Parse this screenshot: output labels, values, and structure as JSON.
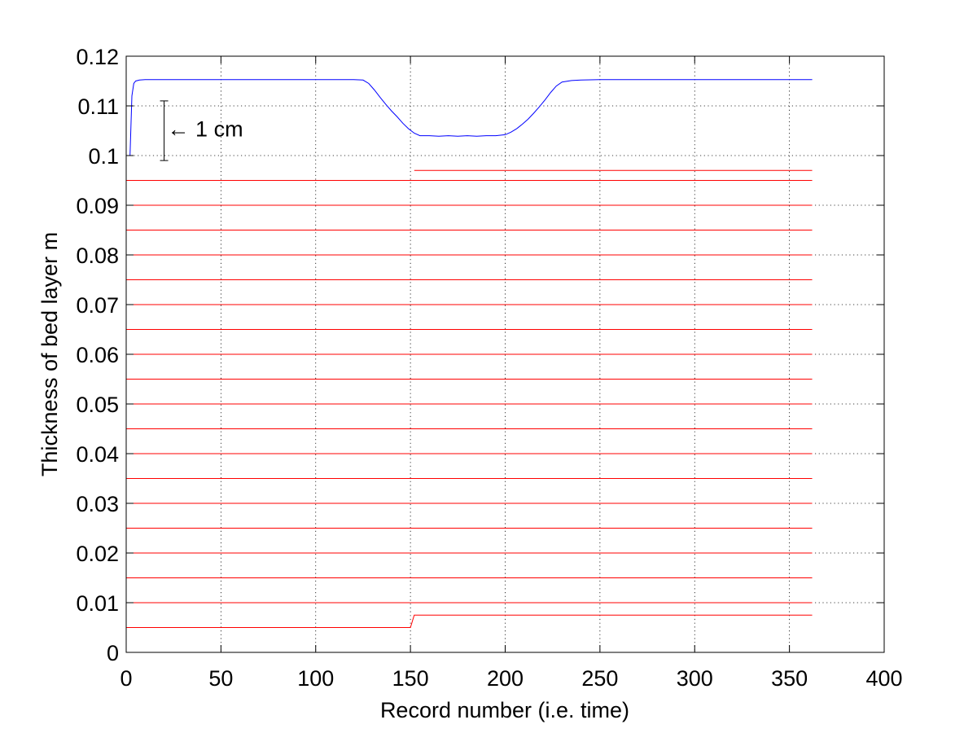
{
  "chart_data": {
    "type": "line",
    "xlabel": "Record number (i.e. time)",
    "ylabel": "Thickness of bed layer m",
    "xlim": [
      0,
      400
    ],
    "ylim": [
      0,
      0.12
    ],
    "xticks": [
      0,
      50,
      100,
      150,
      200,
      250,
      300,
      350,
      400
    ],
    "yticks": [
      0,
      0.01,
      0.02,
      0.03,
      0.04,
      0.05,
      0.06,
      0.07,
      0.08,
      0.09,
      0.1,
      0.11,
      0.12
    ],
    "xtick_labels": [
      "0",
      "50",
      "100",
      "150",
      "200",
      "250",
      "300",
      "350",
      "400"
    ],
    "ytick_labels": [
      "0",
      "0.01",
      "0.02",
      "0.03",
      "0.04",
      "0.05",
      "0.06",
      "0.07",
      "0.08",
      "0.09",
      "0.1",
      "0.11",
      "0.12"
    ],
    "grid": true,
    "annotation": {
      "text": "← 1 cm",
      "bar_x": 20,
      "bar_y": [
        0.099,
        0.111
      ],
      "arrow_y": 0.1055
    },
    "series": [
      {
        "color": "#0000ff",
        "x": [
          1,
          2,
          3,
          4,
          5,
          7,
          10,
          20,
          50,
          100,
          120,
          125,
          128,
          131,
          134,
          137,
          140,
          143,
          146,
          149,
          152,
          155,
          160,
          165,
          170,
          175,
          180,
          185,
          190,
          195,
          200,
          203,
          206,
          209,
          212,
          215,
          218,
          221,
          224,
          227,
          230,
          235,
          240,
          250,
          300,
          362
        ],
        "y": [
          0.1,
          0.1,
          0.112,
          0.1145,
          0.115,
          0.1152,
          0.1153,
          0.1153,
          0.1153,
          0.1153,
          0.1153,
          0.1152,
          0.1145,
          0.1132,
          0.1117,
          0.1103,
          0.109,
          0.1078,
          0.1065,
          0.1054,
          0.1045,
          0.104,
          0.104,
          0.1039,
          0.104,
          0.1039,
          0.104,
          0.1039,
          0.104,
          0.104,
          0.1042,
          0.1047,
          0.1054,
          0.1063,
          0.1073,
          0.1085,
          0.1098,
          0.1112,
          0.1127,
          0.114,
          0.1148,
          0.1151,
          0.1152,
          0.1153,
          0.1153,
          0.1153
        ]
      },
      {
        "color": "#ff0000",
        "step_from": 150,
        "step_to": 152,
        "x_start": 0,
        "x_end": 362,
        "before": [
          0.005,
          0.01,
          0.015,
          0.02,
          0.025,
          0.03,
          0.035,
          0.04,
          0.045,
          0.05,
          0.055,
          0.06,
          0.065,
          0.07,
          0.075,
          0.08,
          0.085,
          0.09,
          0.095
        ],
        "after": [
          0.0075,
          0.01,
          0.015,
          0.02,
          0.025,
          0.03,
          0.035,
          0.04,
          0.045,
          0.05,
          0.055,
          0.06,
          0.065,
          0.07,
          0.075,
          0.08,
          0.085,
          0.09,
          0.095,
          0.097
        ]
      }
    ]
  }
}
